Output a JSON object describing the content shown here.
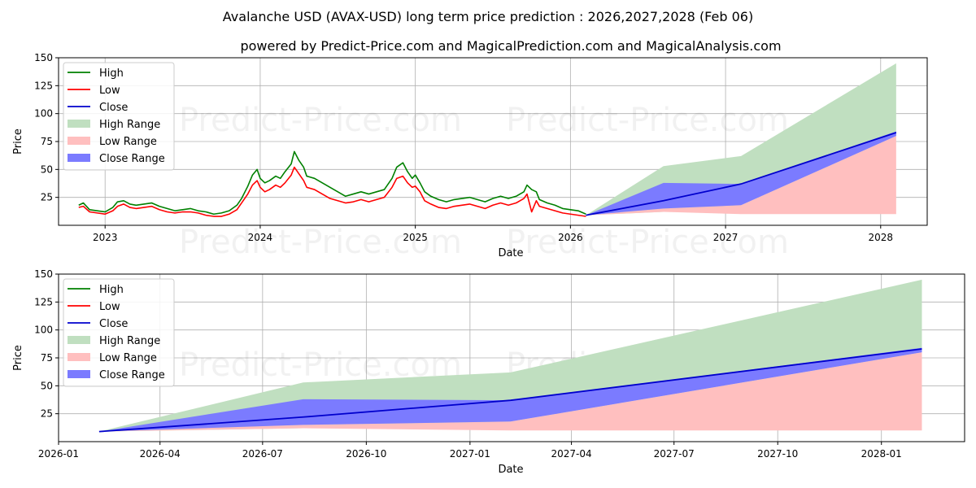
{
  "chart_data": [
    {
      "type": "line",
      "panel": "top",
      "title": "Avalanche USD (AVAX-USD) long term price prediction : 2026,2027,2028 (Feb 06)",
      "subtitle": "powered by Predict-Price.com and MagicalPrediction.com and MagicalAnalysis.com",
      "watermark": "Predict-Price.com",
      "xlabel": "Date",
      "ylabel": "Price",
      "xlim": [
        2022.7,
        2028.3
      ],
      "ylim": [
        0,
        150
      ],
      "xticks": [
        2023,
        2024,
        2025,
        2026,
        2027,
        2028
      ],
      "xtick_labels": [
        "2023",
        "2024",
        "2025",
        "2026",
        "2027",
        "2028"
      ],
      "yticks": [
        25,
        50,
        75,
        100,
        125,
        150
      ],
      "grid": true,
      "legend": {
        "placement": "top-left",
        "entries": [
          "High",
          "Low",
          "Close",
          "High Range",
          "Low Range",
          "Close Range"
        ]
      },
      "history": {
        "x": [
          2022.83,
          2022.86,
          2022.9,
          2022.95,
          2023.0,
          2023.05,
          2023.08,
          2023.12,
          2023.16,
          2023.2,
          2023.25,
          2023.3,
          2023.35,
          2023.4,
          2023.45,
          2023.5,
          2023.55,
          2023.6,
          2023.65,
          2023.7,
          2023.75,
          2023.8,
          2023.85,
          2023.88,
          2023.92,
          2023.95,
          2023.98,
          2024.0,
          2024.03,
          2024.06,
          2024.1,
          2024.13,
          2024.16,
          2024.2,
          2024.22,
          2024.25,
          2024.28,
          2024.3,
          2024.35,
          2024.4,
          2024.45,
          2024.5,
          2024.55,
          2024.6,
          2024.65,
          2024.7,
          2024.75,
          2024.8,
          2024.85,
          2024.88,
          2024.92,
          2024.95,
          2024.98,
          2025.0,
          2025.03,
          2025.06,
          2025.1,
          2025.15,
          2025.2,
          2025.25,
          2025.3,
          2025.35,
          2025.4,
          2025.45,
          2025.5,
          2025.55,
          2025.6,
          2025.65,
          2025.7,
          2025.72,
          2025.75,
          2025.78,
          2025.8,
          2025.85,
          2025.9,
          2025.95,
          2026.0,
          2026.05,
          2026.1
        ],
        "high": [
          18,
          20,
          14,
          13,
          12,
          16,
          21,
          22,
          19,
          18,
          19,
          20,
          17,
          15,
          13,
          14,
          15,
          13,
          12,
          10,
          11,
          13,
          18,
          24,
          35,
          45,
          50,
          42,
          38,
          40,
          44,
          42,
          48,
          55,
          66,
          58,
          52,
          44,
          42,
          38,
          34,
          30,
          26,
          28,
          30,
          28,
          30,
          32,
          42,
          52,
          56,
          48,
          42,
          45,
          38,
          30,
          26,
          23,
          21,
          23,
          24,
          25,
          23,
          21,
          24,
          26,
          24,
          26,
          30,
          36,
          32,
          30,
          23,
          20,
          18,
          15,
          14,
          13,
          10
        ],
        "low": [
          16,
          17,
          12,
          11,
          10,
          13,
          17,
          19,
          16,
          15,
          16,
          17,
          14,
          12,
          11,
          12,
          12,
          11,
          9,
          8,
          8,
          10,
          14,
          20,
          28,
          36,
          40,
          34,
          30,
          32,
          36,
          34,
          38,
          45,
          52,
          46,
          40,
          34,
          32,
          28,
          24,
          22,
          20,
          21,
          23,
          21,
          23,
          25,
          34,
          42,
          44,
          38,
          34,
          35,
          30,
          22,
          19,
          16,
          15,
          17,
          18,
          19,
          17,
          15,
          18,
          20,
          18,
          20,
          24,
          28,
          12,
          22,
          17,
          15,
          13,
          11,
          10,
          9,
          8
        ]
      },
      "forecast": {
        "x": [
          2026.1,
          2026.6,
          2027.1,
          2028.1
        ],
        "close": [
          9,
          22,
          37,
          83
        ],
        "high_range": [
          [
            9,
            9
          ],
          [
            12,
            53
          ],
          [
            18,
            62
          ],
          [
            80,
            145
          ]
        ],
        "low_range": [
          [
            9,
            9
          ],
          [
            12,
            15
          ],
          [
            10,
            18
          ],
          [
            10,
            80
          ]
        ],
        "close_range": [
          [
            9,
            9
          ],
          [
            15,
            38
          ],
          [
            18,
            37
          ],
          [
            80,
            84
          ]
        ]
      }
    },
    {
      "type": "line",
      "panel": "bottom",
      "watermark": "Predict-Price.com",
      "xlabel": "Date",
      "ylabel": "Price",
      "xlim": [
        "2026-01-01",
        "2028-03-15"
      ],
      "ylim": [
        0,
        150
      ],
      "xticks": [
        "2026-01-01",
        "2026-04-01",
        "2026-07-01",
        "2026-10-01",
        "2027-01-01",
        "2027-04-01",
        "2027-07-01",
        "2027-10-01",
        "2028-01-01"
      ],
      "xtick_labels": [
        "2026-01",
        "2026-04",
        "2026-07",
        "2026-10",
        "2027-01",
        "2027-04",
        "2027-07",
        "2027-10",
        "2028-01"
      ],
      "yticks": [
        25,
        50,
        75,
        100,
        125,
        150
      ],
      "grid": true,
      "legend": {
        "placement": "top-left",
        "entries": [
          "High",
          "Low",
          "Close",
          "High Range",
          "Low Range",
          "Close Range"
        ]
      },
      "forecast": {
        "x": [
          "2026-02-06",
          "2026-08-06",
          "2027-02-06",
          "2028-02-06"
        ],
        "close": [
          9,
          22,
          37,
          83
        ],
        "high_range": [
          [
            9,
            9
          ],
          [
            12,
            53
          ],
          [
            18,
            62
          ],
          [
            80,
            145
          ]
        ],
        "low_range": [
          [
            9,
            9
          ],
          [
            12,
            15
          ],
          [
            10,
            18
          ],
          [
            10,
            80
          ]
        ],
        "close_range": [
          [
            9,
            9
          ],
          [
            15,
            38
          ],
          [
            18,
            37
          ],
          [
            80,
            84
          ]
        ]
      }
    }
  ],
  "colors": {
    "high": "#008000",
    "low": "#ff0000",
    "close": "#0000cd",
    "high_range": "#c0dfc0",
    "low_range": "#ffbfbf",
    "close_range": "#7b7bff"
  }
}
